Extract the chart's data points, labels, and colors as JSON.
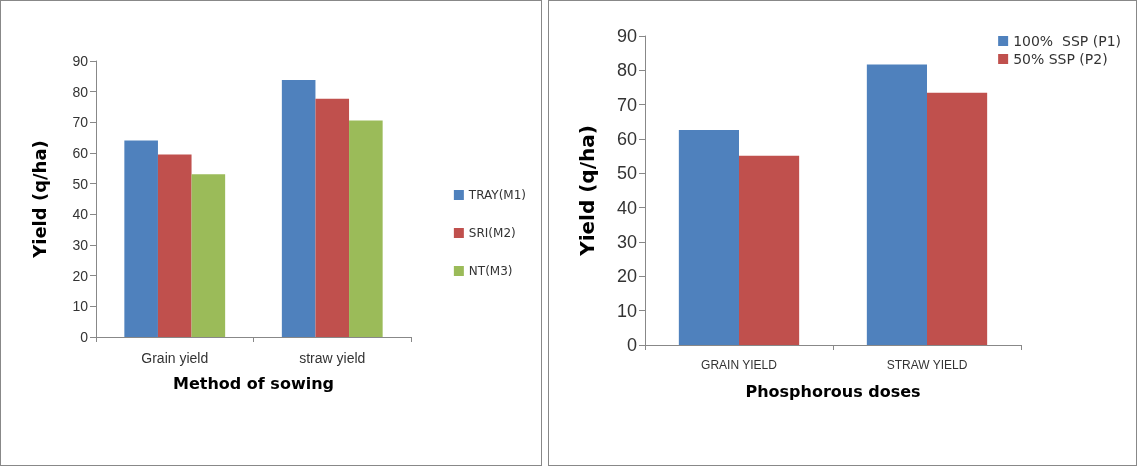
{
  "chart_data": [
    {
      "type": "bar",
      "xlabel": "Method of sowing",
      "ylabel": "Yield (q/ha)",
      "categories": [
        "Grain yield",
        "straw yield"
      ],
      "series": [
        {
          "name": "TRAY(M1)",
          "color": "#4f81bd",
          "values": [
            64.1,
            83.8
          ]
        },
        {
          "name": "SRI(M2)",
          "color": "#c0504d",
          "values": [
            59.5,
            77.7
          ]
        },
        {
          "name": "NT(M3)",
          "color": "#9bbb59",
          "values": [
            53.1,
            70.6
          ]
        }
      ],
      "ylim": [
        0,
        90
      ],
      "yticks": [
        0,
        10,
        20,
        30,
        40,
        50,
        60,
        70,
        80,
        90
      ],
      "grid": false,
      "legend": "right"
    },
    {
      "type": "bar",
      "xlabel": "Phosphorous doses",
      "ylabel": "Yield (q/ha)",
      "categories": [
        "GRAIN YIELD",
        "STRAW YIELD"
      ],
      "series": [
        {
          "name": "100%  SSP (P1)",
          "color": "#4f81bd",
          "values": [
            62.6,
            81.7
          ]
        },
        {
          "name": "50% SSP (P2)",
          "color": "#c0504d",
          "values": [
            55.1,
            73.5
          ]
        }
      ],
      "ylim": [
        0,
        90
      ],
      "yticks": [
        0,
        10,
        20,
        30,
        40,
        50,
        60,
        70,
        80,
        90
      ],
      "grid": false,
      "legend": "top right"
    }
  ]
}
